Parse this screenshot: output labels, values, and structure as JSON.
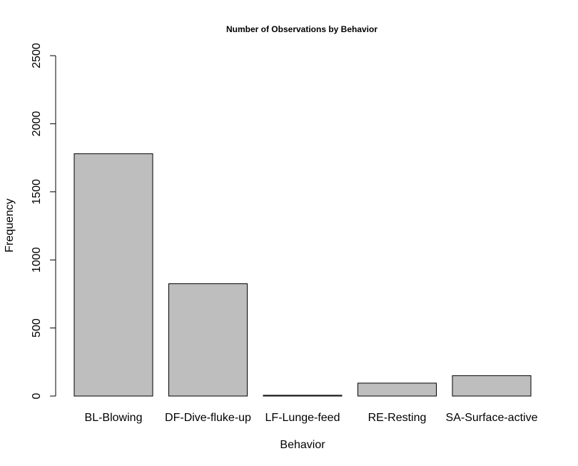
{
  "chart_data": {
    "type": "bar",
    "title": "Number of Observations by Behavior",
    "xlabel": "Behavior",
    "ylabel": "Frequency",
    "categories": [
      "BL-Blowing",
      "DF-Dive-fluke-up",
      "LF-Lunge-feed",
      "RE-Resting",
      "SA-Surface-active"
    ],
    "values": [
      1780,
      825,
      6,
      95,
      150
    ],
    "ylim": [
      0,
      2500
    ],
    "yticks": [
      0,
      500,
      1000,
      1500,
      2000,
      2500
    ],
    "grid": false,
    "legend": "none",
    "colors": {
      "bar_fill": "#bebebe",
      "bar_stroke": "#000000"
    }
  }
}
